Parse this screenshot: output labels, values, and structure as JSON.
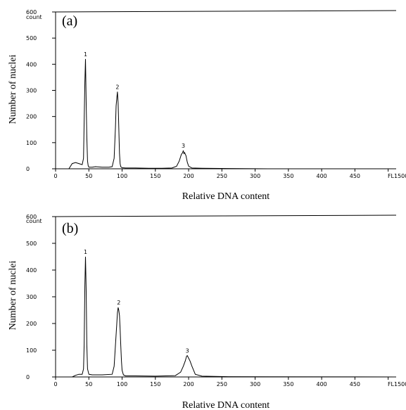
{
  "chart_data": [
    {
      "type": "line",
      "panel_label": "(a)",
      "xlabel": "Relative DNA content",
      "ylabel": "Number of nuclei",
      "y_unit": "count",
      "x_unit": "FL1",
      "xlim": [
        0,
        512
      ],
      "ylim": [
        0,
        600
      ],
      "x_ticks": [
        "0",
        "50",
        "100",
        "150",
        "200",
        "250",
        "300",
        "350",
        "400",
        "450",
        "500"
      ],
      "y_ticks": [
        "0",
        "100",
        "200",
        "300",
        "400",
        "500",
        "600"
      ],
      "peaks": [
        {
          "label": "1",
          "x": 45,
          "y": 420
        },
        {
          "label": "2",
          "x": 93,
          "y": 295
        },
        {
          "label": "3",
          "x": 192,
          "y": 70
        }
      ],
      "series": [
        {
          "x": [
            0,
            20,
            25,
            30,
            35,
            40,
            42,
            43,
            44,
            45,
            46,
            47,
            48,
            49,
            50,
            55,
            60,
            70,
            80,
            85,
            88,
            90,
            91,
            92,
            93,
            94,
            95,
            96,
            97,
            98,
            100,
            105,
            110,
            120,
            140,
            160,
            175,
            182,
            186,
            189,
            191,
            192,
            193,
            194,
            196,
            198,
            200,
            205,
            220,
            260,
            320,
            400,
            512
          ],
          "y": [
            0,
            0,
            20,
            24,
            20,
            16,
            40,
            180,
            330,
            420,
            250,
            120,
            30,
            12,
            6,
            6,
            8,
            6,
            6,
            8,
            40,
            160,
            240,
            270,
            295,
            250,
            160,
            60,
            20,
            8,
            4,
            3,
            3,
            3,
            2,
            2,
            3,
            10,
            30,
            55,
            62,
            70,
            58,
            62,
            50,
            25,
            10,
            3,
            2,
            1,
            0,
            0,
            0
          ]
        }
      ]
    },
    {
      "type": "line",
      "panel_label": "(b)",
      "xlabel": "Relative DNA content",
      "ylabel": "Number of nuclei",
      "y_unit": "count",
      "x_unit": "FL1",
      "xlim": [
        0,
        512
      ],
      "ylim": [
        0,
        600
      ],
      "x_ticks": [
        "0",
        "50",
        "100",
        "150",
        "200",
        "250",
        "300",
        "350",
        "400",
        "450",
        "500"
      ],
      "y_ticks": [
        "0",
        "100",
        "200",
        "300",
        "400",
        "500",
        "600"
      ],
      "peaks": [
        {
          "label": "1",
          "x": 45,
          "y": 450
        },
        {
          "label": "2",
          "x": 95,
          "y": 260
        },
        {
          "label": "3",
          "x": 198,
          "y": 80
        }
      ],
      "series": [
        {
          "x": [
            0,
            25,
            30,
            35,
            40,
            42,
            43,
            44,
            45,
            46,
            47,
            48,
            50,
            55,
            70,
            85,
            88,
            90,
            92,
            93,
            94,
            95,
            96,
            97,
            98,
            99,
            100,
            102,
            105,
            120,
            150,
            180,
            188,
            192,
            195,
            197,
            198,
            200,
            202,
            205,
            210,
            220,
            260,
            512
          ],
          "y": [
            0,
            0,
            6,
            10,
            10,
            30,
            120,
            340,
            450,
            320,
            120,
            30,
            10,
            8,
            8,
            10,
            40,
            120,
            200,
            240,
            260,
            250,
            230,
            180,
            120,
            60,
            25,
            8,
            4,
            4,
            3,
            5,
            18,
            40,
            60,
            78,
            80,
            70,
            60,
            40,
            10,
            3,
            1,
            0
          ]
        }
      ]
    }
  ]
}
